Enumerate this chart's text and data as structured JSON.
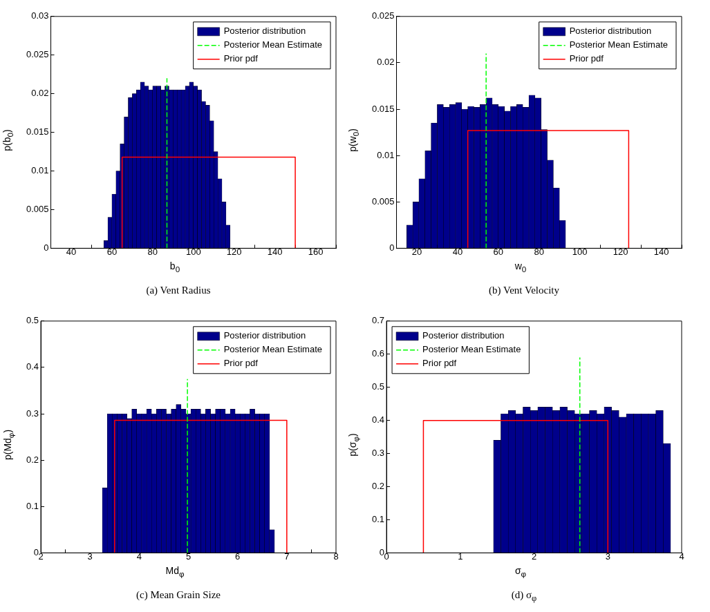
{
  "chart_data": [
    {
      "type": "histogram",
      "title": "(a)  Vent Radius",
      "xlabel": "b$_{0}$",
      "ylabel": "p(b$_{0}$)",
      "xlim": [
        30,
        170
      ],
      "xticks": [
        40,
        60,
        80,
        100,
        120,
        140,
        160
      ],
      "ylim": [
        0,
        0.03
      ],
      "yticks": [
        0,
        0.005,
        0.01,
        0.015,
        0.02,
        0.025,
        0.03
      ],
      "grid": false,
      "legend": "top right",
      "marker": "none",
      "series": [
        {
          "name": "Posterior distribution",
          "color": "#00008b",
          "bins": [
            56,
            58,
            60,
            62,
            64,
            66,
            68,
            70,
            72,
            74,
            76,
            78,
            80,
            82,
            84,
            86,
            88,
            90,
            92,
            94,
            96,
            98,
            100,
            102,
            104,
            106,
            108,
            110,
            112,
            114,
            116,
            118
          ],
          "values": [
            0.001,
            0.004,
            0.007,
            0.01,
            0.0135,
            0.017,
            0.0195,
            0.02,
            0.0205,
            0.0215,
            0.021,
            0.0205,
            0.021,
            0.021,
            0.0205,
            0.021,
            0.0205,
            0.0205,
            0.0205,
            0.0205,
            0.021,
            0.0215,
            0.021,
            0.0205,
            0.019,
            0.0185,
            0.0165,
            0.0125,
            0.009,
            0.006,
            0.003
          ]
        },
        {
          "type": "line",
          "name": "Posterior Mean Estimate",
          "color": "#00ff00",
          "line_style": "dashed",
          "x": [
            87,
            87
          ],
          "values": [
            0,
            0.022
          ]
        },
        {
          "type": "line",
          "name": "Prior pdf",
          "color": "#ff0000",
          "line_style": "solid",
          "x": [
            65,
            65,
            150,
            150
          ],
          "values": [
            0,
            0.0118,
            0.0118,
            0
          ]
        }
      ]
    },
    {
      "type": "histogram",
      "title": "(b)  Vent Velocity",
      "xlabel": "w$_{0}$",
      "ylabel": "p(w$_{0}$)",
      "xlim": [
        10,
        150
      ],
      "xticks": [
        20,
        40,
        60,
        80,
        100,
        120,
        140
      ],
      "ylim": [
        0,
        0.025
      ],
      "yticks": [
        0,
        0.005,
        0.01,
        0.015,
        0.02,
        0.025
      ],
      "grid": false,
      "legend": "top right",
      "marker": "none",
      "series": [
        {
          "name": "Posterior distribution",
          "color": "#00008b",
          "bins": [
            15,
            18,
            21,
            24,
            27,
            30,
            33,
            36,
            39,
            42,
            45,
            48,
            51,
            54,
            57,
            60,
            63,
            66,
            69,
            72,
            75,
            78,
            81,
            84,
            87,
            90,
            93
          ],
          "values": [
            0.0025,
            0.005,
            0.0075,
            0.0105,
            0.0135,
            0.0155,
            0.0152,
            0.0155,
            0.0157,
            0.015,
            0.0153,
            0.0152,
            0.0155,
            0.0162,
            0.0155,
            0.0153,
            0.0148,
            0.0153,
            0.0155,
            0.0152,
            0.0165,
            0.0162,
            0.0128,
            0.0095,
            0.0065,
            0.003
          ]
        },
        {
          "type": "line",
          "name": "Posterior Mean Estimate",
          "color": "#00ff00",
          "line_style": "dashed",
          "x": [
            54,
            54
          ],
          "values": [
            0,
            0.021
          ]
        },
        {
          "type": "line",
          "name": "Prior pdf",
          "color": "#ff0000",
          "line_style": "solid",
          "x": [
            45,
            45,
            124,
            124
          ],
          "values": [
            0,
            0.0127,
            0.0127,
            0
          ]
        }
      ]
    },
    {
      "type": "histogram",
      "title": "(c)  Mean Grain Size",
      "xlabel": "Md$_{φ}$",
      "ylabel": "p(Md$_{φ}$)",
      "xlim": [
        2,
        8
      ],
      "xticks": [
        2,
        3,
        4,
        5,
        6,
        7,
        8
      ],
      "ylim": [
        0,
        0.5
      ],
      "yticks": [
        0,
        0.1,
        0.2,
        0.3,
        0.4,
        0.5
      ],
      "grid": false,
      "legend": "top right",
      "marker": "none",
      "series": [
        {
          "name": "Posterior distribution",
          "color": "#00008b",
          "bins": [
            3.25,
            3.35,
            3.45,
            3.55,
            3.65,
            3.75,
            3.85,
            3.95,
            4.05,
            4.15,
            4.25,
            4.35,
            4.45,
            4.55,
            4.65,
            4.75,
            4.85,
            4.95,
            5.05,
            5.15,
            5.25,
            5.35,
            5.45,
            5.55,
            5.65,
            5.75,
            5.85,
            5.95,
            6.05,
            6.15,
            6.25,
            6.35,
            6.45,
            6.55,
            6.65,
            6.75
          ],
          "values": [
            0.14,
            0.3,
            0.3,
            0.3,
            0.3,
            0.29,
            0.31,
            0.3,
            0.3,
            0.31,
            0.3,
            0.31,
            0.31,
            0.3,
            0.31,
            0.32,
            0.31,
            0.3,
            0.31,
            0.31,
            0.3,
            0.31,
            0.3,
            0.31,
            0.31,
            0.3,
            0.31,
            0.3,
            0.3,
            0.3,
            0.31,
            0.3,
            0.3,
            0.3,
            0.05
          ]
        },
        {
          "type": "line",
          "name": "Posterior Mean Estimate",
          "color": "#00ff00",
          "line_style": "dashed",
          "x": [
            4.98,
            4.98
          ],
          "values": [
            0,
            0.375
          ]
        },
        {
          "type": "line",
          "name": "Prior pdf",
          "color": "#ff0000",
          "line_style": "solid",
          "x": [
            3.5,
            3.5,
            7,
            7
          ],
          "values": [
            0,
            0.286,
            0.286,
            0
          ]
        }
      ]
    },
    {
      "type": "histogram",
      "title": "(d)  σ$_{φ}$",
      "xlabel": "σ$_{φ}$",
      "ylabel": "p(σ$_{φ}$)",
      "xlim": [
        0,
        4
      ],
      "xticks": [
        0,
        1,
        2,
        3,
        4
      ],
      "ylim": [
        0,
        0.7
      ],
      "yticks": [
        0,
        0.1,
        0.2,
        0.3,
        0.4,
        0.5,
        0.6,
        0.7
      ],
      "grid": false,
      "legend": "top left",
      "marker": "none",
      "series": [
        {
          "name": "Posterior distribution",
          "color": "#00008b",
          "bins": [
            1.45,
            1.55,
            1.65,
            1.75,
            1.85,
            1.95,
            2.05,
            2.15,
            2.25,
            2.35,
            2.45,
            2.55,
            2.65,
            2.75,
            2.85,
            2.95,
            3.05,
            3.15,
            3.25,
            3.35,
            3.45,
            3.55,
            3.65,
            3.75,
            3.85
          ],
          "values": [
            0.34,
            0.42,
            0.43,
            0.42,
            0.44,
            0.43,
            0.44,
            0.44,
            0.43,
            0.44,
            0.43,
            0.42,
            0.42,
            0.43,
            0.42,
            0.44,
            0.43,
            0.41,
            0.42,
            0.42,
            0.42,
            0.42,
            0.43,
            0.33
          ]
        },
        {
          "type": "line",
          "name": "Posterior Mean Estimate",
          "color": "#00ff00",
          "line_style": "dashed",
          "x": [
            2.62,
            2.62
          ],
          "values": [
            0,
            0.59
          ]
        },
        {
          "type": "line",
          "name": "Prior pdf",
          "color": "#ff0000",
          "line_style": "solid",
          "x": [
            0.5,
            0.5,
            3,
            3
          ],
          "values": [
            0,
            0.4,
            0.4,
            0
          ]
        }
      ]
    }
  ]
}
